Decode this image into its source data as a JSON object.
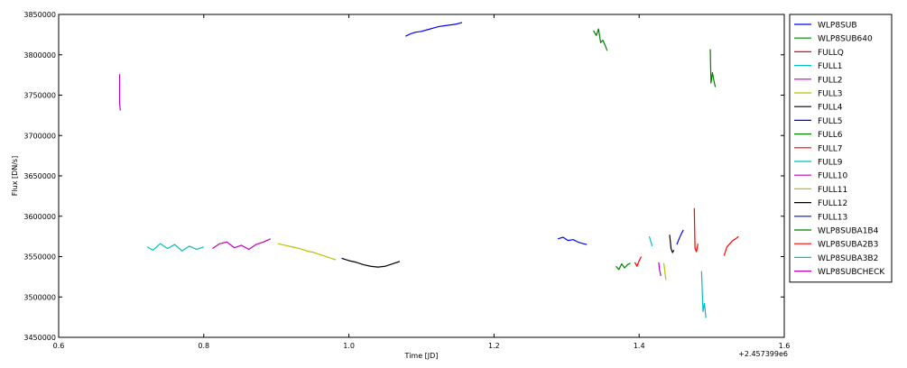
{
  "chart_data": {
    "type": "line",
    "xlabel": "Time [JD]",
    "ylabel": "Flux [DN/s]",
    "x_offset_label": "+2.457399e6",
    "xlim": [
      0.6,
      1.6
    ],
    "ylim": [
      3450000,
      3850000
    ],
    "xticks": [
      0.6,
      0.8,
      1.0,
      1.2,
      1.4,
      1.6
    ],
    "xtick_labels": [
      "0.6",
      "0.8",
      "1.0",
      "1.2",
      "1.4",
      "1.6"
    ],
    "yticks": [
      3450000,
      3500000,
      3550000,
      3600000,
      3650000,
      3700000,
      3750000,
      3800000,
      3850000
    ],
    "ytick_labels": [
      "3450000",
      "3500000",
      "3550000",
      "3600000",
      "3650000",
      "3700000",
      "3750000",
      "3800000",
      "3850000"
    ],
    "grid": false,
    "legend_position": "right, outside plot",
    "series": [
      {
        "name": "WLP8SUB",
        "color": "#0000ff",
        "x": [
          1.078,
          1.085,
          1.092,
          1.1,
          1.108,
          1.116,
          1.124,
          1.132,
          1.14,
          1.148,
          1.156
        ],
        "y": [
          3823000,
          3826000,
          3828000,
          3829000,
          3831000,
          3833000,
          3835000,
          3836000,
          3837000,
          3838000,
          3840000
        ]
      },
      {
        "name": "WLP8SUB640",
        "color": "#008000",
        "x": [
          1.337,
          1.341,
          1.344,
          1.347,
          1.35,
          1.353,
          1.356
        ],
        "y": [
          3830000,
          3824000,
          3832000,
          3815000,
          3818000,
          3812000,
          3805000
        ]
      },
      {
        "name": "FULLQ",
        "color": "#ff0000",
        "x": [
          1.394,
          1.397,
          1.4,
          1.403
        ],
        "y": [
          3543000,
          3538000,
          3545000,
          3550000
        ]
      },
      {
        "name": "FULL1",
        "color": "#00bfbf",
        "x": [
          0.722,
          0.73,
          0.74,
          0.75,
          0.76,
          0.77,
          0.78,
          0.79,
          0.8
        ],
        "y": [
          3562000,
          3558000,
          3566000,
          3560000,
          3565000,
          3557000,
          3563000,
          3559000,
          3562000
        ]
      },
      {
        "name": "FULL2",
        "color": "#bf00bf",
        "x": [
          0.812,
          0.822,
          0.832,
          0.842,
          0.852,
          0.862,
          0.872,
          0.882,
          0.892
        ],
        "y": [
          3560000,
          3566000,
          3568000,
          3561000,
          3564000,
          3559000,
          3565000,
          3568000,
          3572000
        ]
      },
      {
        "name": "FULL3",
        "color": "#bfbf00",
        "x": [
          0.902,
          0.912,
          0.922,
          0.932,
          0.942,
          0.952,
          0.962,
          0.972,
          0.982
        ],
        "y": [
          3566000,
          3564000,
          3562000,
          3560000,
          3557000,
          3555000,
          3552000,
          3549000,
          3546000
        ]
      },
      {
        "name": "FULL4",
        "color": "#000000",
        "x": [
          0.99,
          1.0,
          1.01,
          1.02,
          1.03,
          1.04,
          1.05,
          1.06,
          1.07
        ],
        "y": [
          3548000,
          3545000,
          3543000,
          3540000,
          3538000,
          3537000,
          3538000,
          3541000,
          3544000
        ]
      },
      {
        "name": "FULL5",
        "color": "#0000ff",
        "x": [
          1.288,
          1.295,
          1.302,
          1.309,
          1.316,
          1.323,
          1.328
        ],
        "y": [
          3572000,
          3574000,
          3570000,
          3571000,
          3568000,
          3566000,
          3565000
        ]
      },
      {
        "name": "FULL6",
        "color": "#008000",
        "x": [
          1.368,
          1.372,
          1.376,
          1.38,
          1.384,
          1.388
        ],
        "y": [
          3538000,
          3534000,
          3541000,
          3536000,
          3540000,
          3542000
        ]
      },
      {
        "name": "FULL7",
        "color": "#ff0000",
        "x": [
          1.476,
          1.477,
          1.479,
          1.481
        ],
        "y": [
          3610000,
          3560000,
          3556000,
          3566000
        ]
      },
      {
        "name": "FULL9",
        "color": "#00bfbf",
        "x": [
          1.414,
          1.416,
          1.418
        ],
        "y": [
          3575000,
          3569000,
          3563000
        ]
      },
      {
        "name": "FULL10",
        "color": "#bf00bf",
        "x": [
          1.427,
          1.428,
          1.429,
          1.43
        ],
        "y": [
          3543000,
          3534000,
          3530000,
          3526000
        ]
      },
      {
        "name": "FULL11",
        "color": "#bfbf00",
        "x": [
          1.434,
          1.435,
          1.436,
          1.437
        ],
        "y": [
          3542000,
          3535000,
          3527000,
          3521000
        ]
      },
      {
        "name": "FULL12",
        "color": "#000000",
        "x": [
          1.442,
          1.444,
          1.446,
          1.448
        ],
        "y": [
          3577000,
          3560000,
          3555000,
          3558000
        ]
      },
      {
        "name": "FULL13",
        "color": "#0000ff",
        "x": [
          1.452,
          1.455,
          1.458,
          1.461
        ],
        "y": [
          3565000,
          3572000,
          3578000,
          3583000
        ]
      },
      {
        "name": "WLP8SUBA1B4",
        "color": "#008000",
        "x": [
          1.498,
          1.499,
          1.501,
          1.503,
          1.505
        ],
        "y": [
          3807000,
          3765000,
          3778000,
          3768000,
          3760000
        ]
      },
      {
        "name": "WLP8SUBA2B3",
        "color": "#ff0000",
        "x": [
          1.517,
          1.521,
          1.525,
          1.529,
          1.533,
          1.537
        ],
        "y": [
          3551000,
          3562000,
          3566000,
          3570000,
          3572000,
          3575000
        ]
      },
      {
        "name": "WLP8SUBA3B2",
        "color": "#00bfbf",
        "x": [
          1.486,
          1.488,
          1.49,
          1.492
        ],
        "y": [
          3532000,
          3482000,
          3492000,
          3474000
        ]
      },
      {
        "name": "WLP8SUBCHECK",
        "color": "#bf00bf",
        "x": [
          0.684,
          0.684,
          0.685
        ],
        "y": [
          3776000,
          3740000,
          3731000
        ]
      }
    ]
  }
}
